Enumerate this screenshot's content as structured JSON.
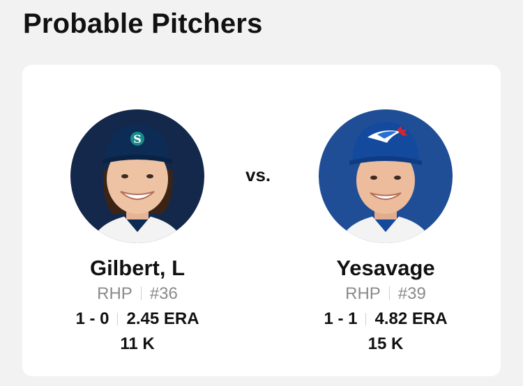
{
  "header": {
    "title": "Probable Pitchers"
  },
  "matchup": {
    "vs_label": "vs.",
    "away": {
      "name": "Gilbert, L",
      "throws": "RHP",
      "number": "#36",
      "record": "1 - 0",
      "era": "2.45 ERA",
      "strikeouts": "11 K",
      "colors": {
        "background": "#13284a",
        "cap": "#0c2c56",
        "logo": "teal-compass-s"
      }
    },
    "home": {
      "name": "Yesavage",
      "throws": "RHP",
      "number": "#39",
      "record": "1 - 1",
      "era": "4.82 ERA",
      "strikeouts": "15 K",
      "colors": {
        "background": "#1f4e96",
        "cap": "#134a9e",
        "logo": "blue-jay-bird"
      }
    }
  }
}
